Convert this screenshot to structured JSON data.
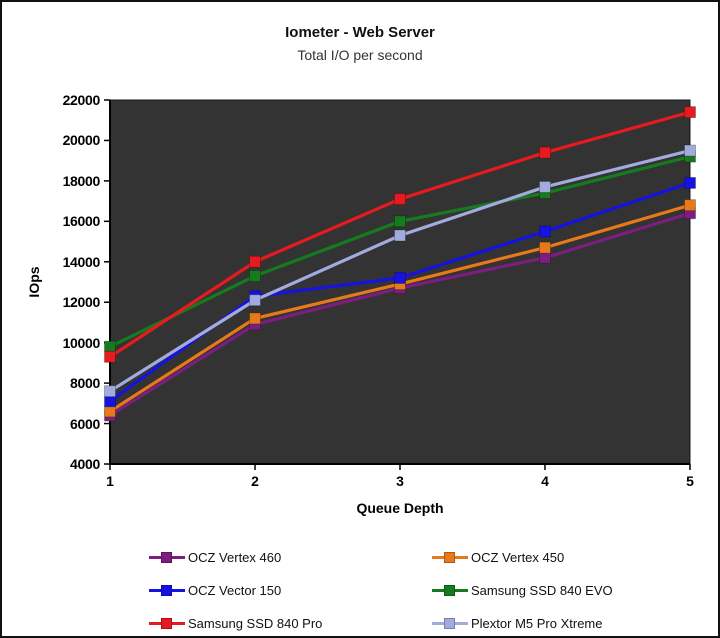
{
  "chart_data": {
    "type": "line",
    "title": "Iometer - Web Server",
    "subtitle": "Total I/O per second",
    "xlabel": "Queue Depth",
    "ylabel": "IOps",
    "x": [
      1,
      2,
      3,
      4,
      5
    ],
    "ylim": [
      4000,
      22000
    ],
    "ytick_step": 2000,
    "grid": false,
    "legend_position": "bottom",
    "plot_bg_color": "#333333",
    "axis_color": "#000000",
    "series": [
      {
        "name": "OCZ Vertex 460",
        "color": "#7B1E7F",
        "values": [
          6400,
          10900,
          12700,
          14200,
          16400
        ]
      },
      {
        "name": "OCZ Vertex 450",
        "color": "#E8791B",
        "values": [
          6600,
          11200,
          12900,
          14700,
          16800
        ]
      },
      {
        "name": "OCZ Vector 150",
        "color": "#1612E0",
        "values": [
          7100,
          12300,
          13200,
          15500,
          17900
        ]
      },
      {
        "name": "Samsung SSD 840 EVO",
        "color": "#167A1F",
        "values": [
          9800,
          13300,
          16000,
          17400,
          19200
        ]
      },
      {
        "name": "Samsung SSD 840 Pro",
        "color": "#E61A1F",
        "values": [
          9300,
          14000,
          17100,
          19400,
          21400
        ]
      },
      {
        "name": "Plextor M5 Pro Xtreme",
        "color": "#A2ABDE",
        "values": [
          7600,
          12100,
          15300,
          17700,
          19500
        ]
      }
    ]
  }
}
